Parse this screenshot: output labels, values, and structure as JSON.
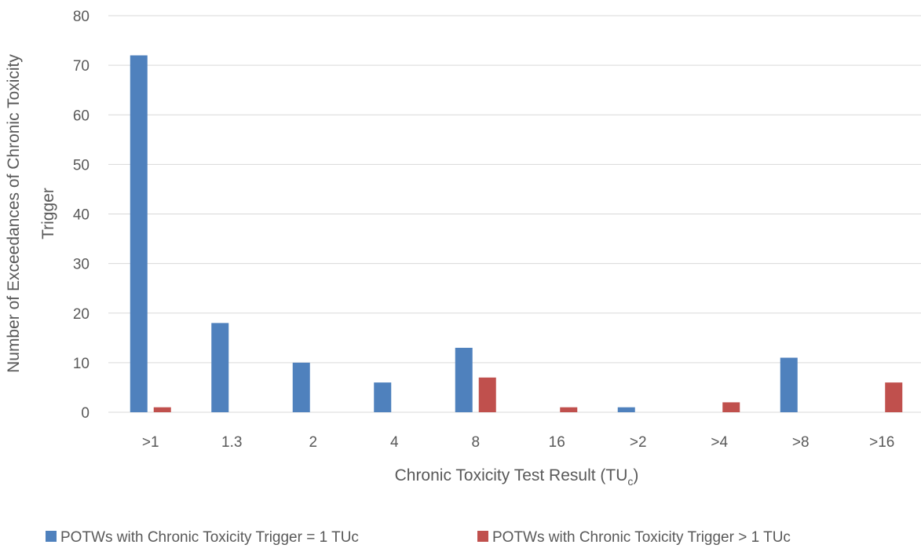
{
  "chart_data": {
    "type": "bar",
    "title": "",
    "categories": [
      ">1",
      "1.3",
      "2",
      "4",
      "8",
      "16",
      ">2",
      ">4",
      ">8",
      ">16"
    ],
    "series": [
      {
        "name": "POTWs with Chronic Toxicity Trigger = 1 TUc",
        "color": "#4f81bd",
        "values": [
          72,
          18,
          10,
          6,
          13,
          0,
          1,
          0,
          11,
          0
        ]
      },
      {
        "name": "POTWs with Chronic Toxicity Trigger > 1 TUc",
        "color": "#c0504d",
        "values": [
          1,
          0,
          0,
          0,
          7,
          1,
          0,
          2,
          0,
          6
        ]
      }
    ],
    "xlabel": {
      "main": "Chronic Toxicity Test Result (TU",
      "subscript": "c",
      "close": ")"
    },
    "ylabel_lines": [
      "Number of Exceedances of Chronic Toxicity",
      "Trigger"
    ],
    "ylim": [
      0,
      80
    ],
    "yticks": [
      0,
      10,
      20,
      30,
      40,
      50,
      60,
      70,
      80
    ],
    "grid": true,
    "legend_position": "bottom"
  }
}
